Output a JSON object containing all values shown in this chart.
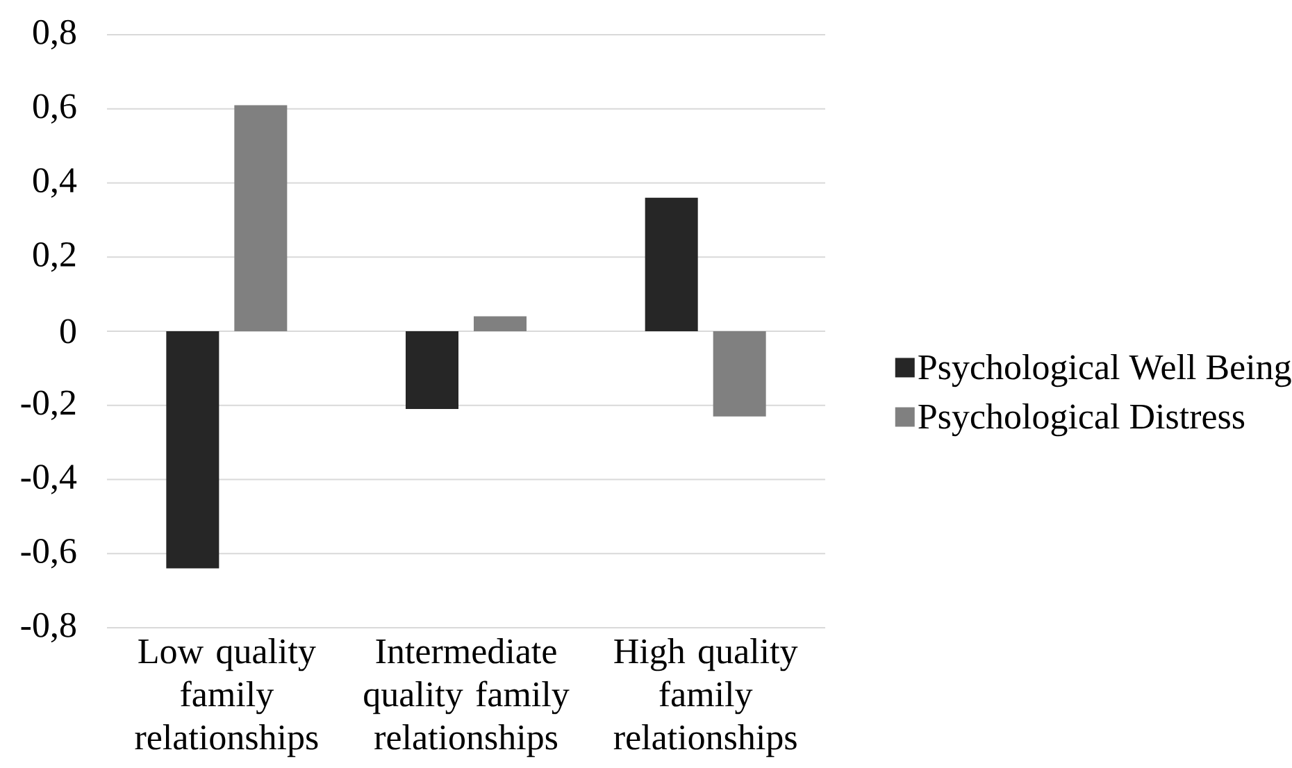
{
  "chart_data": {
    "type": "bar",
    "categories": [
      "Low quality family relationships",
      "Intermediate quality family relationships",
      "High quality family relationships"
    ],
    "series": [
      {
        "name": "Psychological Well Being",
        "color": "#262626",
        "values": [
          -0.64,
          -0.21,
          0.36
        ]
      },
      {
        "name": "Psychological Distress",
        "color": "#808080",
        "values": [
          0.61,
          0.04,
          -0.23
        ]
      }
    ],
    "ylim": [
      -0.8,
      0.8
    ],
    "yticks": [
      {
        "value": -0.8,
        "label": "-0,8"
      },
      {
        "value": -0.6,
        "label": "-0,6"
      },
      {
        "value": -0.4,
        "label": "-0,4"
      },
      {
        "value": -0.2,
        "label": "-0,2"
      },
      {
        "value": 0,
        "label": "0"
      },
      {
        "value": 0.2,
        "label": "0,2"
      },
      {
        "value": 0.4,
        "label": "0,4"
      },
      {
        "value": 0.6,
        "label": "0,6"
      },
      {
        "value": 0.8,
        "label": "0,8"
      }
    ],
    "grid": "y",
    "legend": "right"
  }
}
